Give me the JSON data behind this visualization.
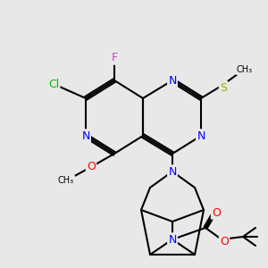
{
  "bg_color": "#e8e8e8",
  "bond_color": "#000000",
  "atom_colors": {
    "N": "#0000ff",
    "O": "#ff0000",
    "Cl": "#00cc00",
    "F": "#cc00cc",
    "S": "#aaaa00",
    "C": "#000000"
  },
  "font_size": 9,
  "bond_width": 1.5
}
